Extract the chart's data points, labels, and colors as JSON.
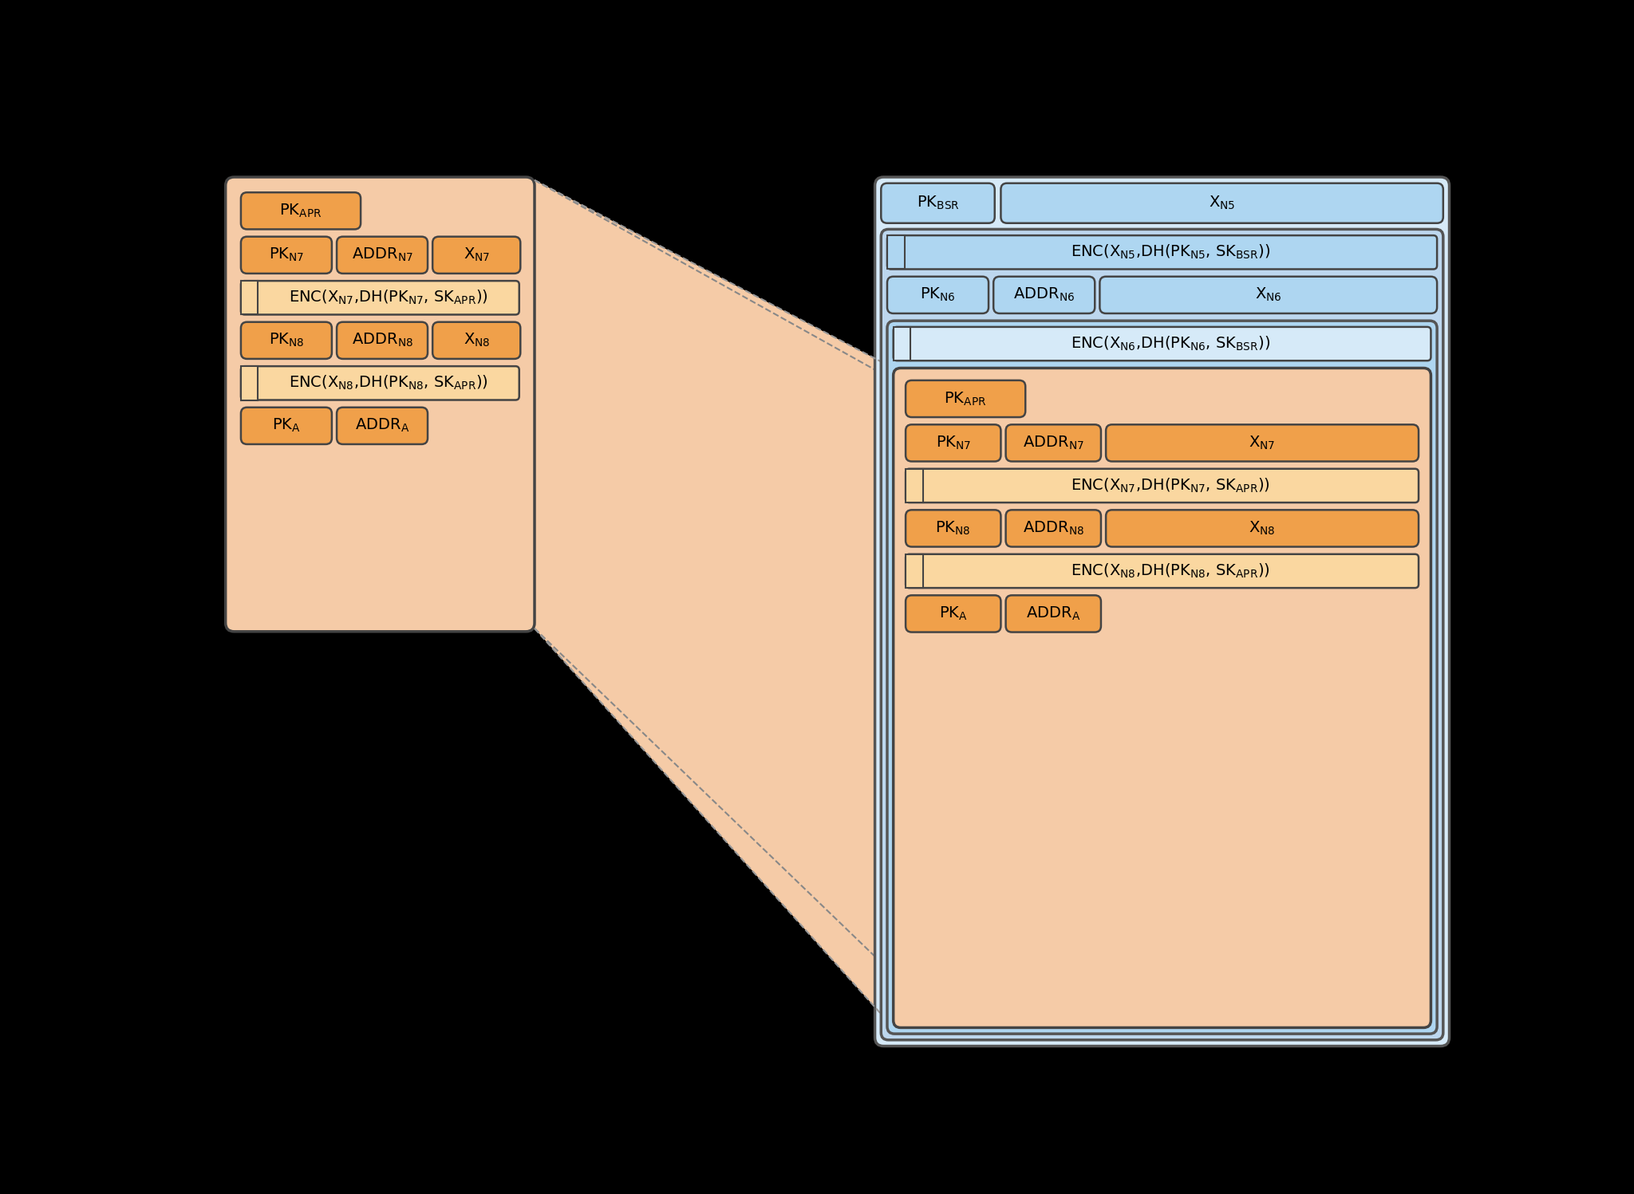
{
  "bg_color": "#000000",
  "ORANGE_OUTER": "#F5CBA7",
  "ORANGE_MID": "#F0A04A",
  "ORANGE_BOX": "#F0A04A",
  "ORANGE_ENC": "#FAD7A0",
  "BLUE_OUTER1": "#D6EAF8",
  "BLUE_OUTER2": "#BDD7EE",
  "BLUE_MID": "#AED6F1",
  "BLUE_BOX": "#AED6F1",
  "EDGE": "#444444",
  "EDGE2": "#555555",
  "font_size": 14
}
